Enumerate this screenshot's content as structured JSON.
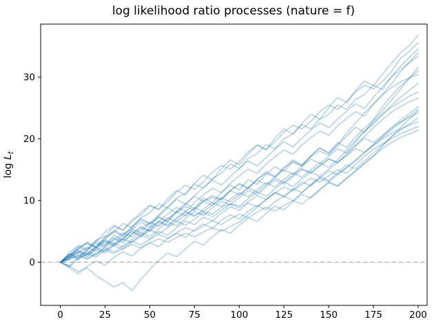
{
  "title": "log likelihood ratio processes (nature = f)",
  "chart_data": {
    "type": "line",
    "title": "log likelihood ratio processes (nature = f)",
    "xlabel": "",
    "ylabel": "log L_t",
    "ylabel_parts": {
      "prefix": "log",
      "variable": "L",
      "subscript": "t"
    },
    "xlim": [
      -11,
      205
    ],
    "ylim": [
      -7,
      38.6
    ],
    "x_ticks": [
      0,
      25,
      50,
      75,
      100,
      125,
      150,
      175,
      200
    ],
    "y_ticks": [
      0,
      10,
      20,
      30
    ],
    "grid": false,
    "legend": "none",
    "x_step": 5,
    "line_color": "#1f77b4",
    "line_alpha": 0.35,
    "line_width": 1.5,
    "zero_line": {
      "y": 0,
      "color": "#b0b0b0",
      "style": "dashed",
      "dash": [
        6.7,
        3.7
      ],
      "width": 1.3
    },
    "series": [
      {
        "name": "path-1",
        "values": [
          0,
          1.1,
          2.4,
          1.9,
          3.6,
          4.2,
          5.8,
          5.1,
          6.9,
          7.6,
          9.2,
          8.5,
          10.3,
          11.6,
          10.9,
          12.8,
          14.1,
          13.3,
          15.2,
          16.6,
          15.8,
          17.5,
          19.0,
          18.2,
          20.1,
          21.6,
          20.8,
          22.5,
          24.0,
          23.2,
          25.1,
          26.7,
          25.9,
          27.8,
          29.4,
          28.6,
          30.5,
          32.2,
          33.9,
          35.1,
          36.8
        ]
      },
      {
        "name": "path-2",
        "values": [
          0,
          1.6,
          2.7,
          2.1,
          3.3,
          4.9,
          6.0,
          5.3,
          6.5,
          8.1,
          9.2,
          8.6,
          9.8,
          11.4,
          12.5,
          11.8,
          13.0,
          14.6,
          15.7,
          15.1,
          16.3,
          17.9,
          19.0,
          18.3,
          19.5,
          21.1,
          22.2,
          21.6,
          22.8,
          24.4,
          25.5,
          24.8,
          26.0,
          27.6,
          28.7,
          28.1,
          29.3,
          30.9,
          33.0,
          34.2,
          35.6
        ]
      },
      {
        "name": "path-3",
        "values": [
          0,
          0.7,
          2.2,
          3.0,
          2.4,
          4.1,
          4.8,
          6.3,
          5.6,
          7.2,
          8.0,
          9.5,
          8.8,
          10.4,
          11.2,
          12.7,
          12.0,
          13.6,
          14.4,
          15.9,
          15.2,
          16.8,
          17.6,
          19.1,
          18.4,
          20.0,
          20.8,
          22.3,
          21.6,
          23.2,
          24.0,
          25.5,
          24.8,
          26.4,
          27.2,
          28.7,
          28.0,
          30.1,
          31.7,
          33.2,
          34.6
        ]
      },
      {
        "name": "path-4",
        "values": [
          0,
          -0.6,
          0.9,
          1.7,
          1.1,
          2.6,
          3.8,
          3.1,
          4.6,
          5.8,
          5.1,
          6.6,
          7.8,
          8.9,
          8.2,
          9.7,
          10.9,
          12.0,
          11.3,
          12.8,
          14.0,
          15.1,
          14.4,
          15.9,
          17.1,
          18.2,
          17.5,
          19.0,
          20.2,
          21.3,
          20.6,
          22.1,
          23.3,
          24.4,
          23.7,
          25.6,
          27.2,
          28.9,
          30.8,
          32.4,
          34.0
        ]
      },
      {
        "name": "path-5",
        "values": [
          0,
          1.0,
          2.1,
          3.3,
          2.5,
          3.9,
          5.2,
          4.4,
          5.8,
          7.1,
          6.3,
          7.7,
          9.0,
          10.2,
          9.4,
          10.8,
          12.1,
          13.3,
          12.5,
          13.9,
          15.2,
          16.4,
          15.6,
          17.0,
          18.3,
          19.5,
          18.7,
          20.1,
          21.4,
          22.6,
          21.8,
          23.2,
          24.5,
          25.7,
          24.9,
          26.8,
          28.4,
          30.0,
          31.2,
          32.3,
          33.4
        ]
      },
      {
        "name": "path-6",
        "values": [
          0,
          1.4,
          0.6,
          2.3,
          3.5,
          2.7,
          4.4,
          3.6,
          5.3,
          6.5,
          5.7,
          7.4,
          6.6,
          8.3,
          9.5,
          8.7,
          10.4,
          9.6,
          11.3,
          12.5,
          11.7,
          13.4,
          12.6,
          14.3,
          15.5,
          14.7,
          16.4,
          15.6,
          17.3,
          18.5,
          17.7,
          19.4,
          18.6,
          20.3,
          21.8,
          23.0,
          24.5,
          26.3,
          28.0,
          29.8,
          31.6
        ]
      },
      {
        "name": "path-7",
        "values": [
          0,
          0.9,
          1.8,
          1.2,
          2.7,
          3.6,
          3.0,
          4.5,
          5.4,
          4.8,
          6.3,
          7.2,
          6.6,
          8.1,
          9.0,
          8.4,
          9.9,
          10.8,
          10.2,
          11.7,
          12.6,
          12.0,
          13.5,
          14.4,
          13.8,
          15.3,
          16.2,
          15.6,
          17.1,
          18.0,
          17.4,
          18.9,
          20.4,
          21.9,
          21.0,
          23.1,
          25.2,
          27.0,
          28.5,
          29.8,
          31.0
        ]
      },
      {
        "name": "path-8",
        "values": [
          0,
          1.2,
          2.5,
          3.1,
          2.3,
          3.7,
          5.0,
          4.2,
          5.6,
          6.9,
          6.1,
          7.5,
          8.8,
          8.0,
          9.4,
          10.7,
          9.9,
          10.5,
          10.1,
          11.5,
          12.8,
          12.0,
          13.4,
          14.7,
          13.9,
          15.3,
          16.6,
          15.8,
          17.2,
          18.5,
          17.7,
          19.1,
          20.9,
          22.6,
          24.2,
          25.7,
          27.1,
          28.3,
          29.2,
          29.9,
          30.4
        ]
      },
      {
        "name": "path-9",
        "values": [
          0,
          -0.8,
          0.5,
          1.4,
          0.8,
          2.0,
          3.1,
          2.5,
          3.7,
          4.8,
          4.2,
          5.4,
          6.5,
          5.9,
          7.1,
          8.2,
          7.6,
          8.8,
          9.9,
          9.3,
          10.5,
          11.6,
          11.0,
          12.2,
          13.3,
          12.7,
          13.9,
          15.0,
          14.4,
          15.6,
          16.7,
          16.1,
          17.8,
          19.5,
          21.2,
          22.4,
          23.9,
          25.4,
          26.7,
          27.9,
          29.0
        ]
      },
      {
        "name": "path-10",
        "values": [
          0,
          0.8,
          1.7,
          1.0,
          2.2,
          3.3,
          2.6,
          3.8,
          4.9,
          4.2,
          5.4,
          6.5,
          5.8,
          7.0,
          8.1,
          7.4,
          8.6,
          9.7,
          9.0,
          10.2,
          11.3,
          10.6,
          11.8,
          12.9,
          12.2,
          13.4,
          14.5,
          13.8,
          15.0,
          16.1,
          15.4,
          16.6,
          18.2,
          19.8,
          21.3,
          22.7,
          24.0,
          25.1,
          26.0,
          26.9,
          27.6
        ]
      },
      {
        "name": "path-11",
        "values": [
          0,
          1.1,
          2.0,
          1.3,
          2.4,
          3.5,
          2.8,
          4.0,
          5.1,
          4.4,
          5.6,
          6.7,
          6.0,
          7.2,
          8.3,
          7.6,
          8.2,
          7.8,
          8.9,
          9.5,
          9.1,
          10.3,
          11.4,
          10.7,
          11.9,
          13.0,
          12.3,
          13.5,
          14.6,
          13.9,
          15.1,
          16.2,
          17.3,
          18.9,
          20.4,
          21.8,
          23.1,
          24.3,
          25.2,
          26.0,
          26.6
        ]
      },
      {
        "name": "path-12",
        "values": [
          0,
          0.6,
          1.5,
          0.9,
          2.1,
          1.5,
          2.7,
          2.1,
          3.3,
          4.4,
          3.8,
          5.0,
          4.4,
          5.6,
          6.7,
          6.1,
          7.3,
          6.7,
          7.9,
          9.0,
          8.4,
          9.6,
          9.0,
          10.2,
          11.3,
          10.7,
          11.9,
          11.3,
          12.5,
          13.6,
          13.0,
          14.2,
          15.3,
          16.4,
          17.8,
          19.1,
          20.4,
          21.7,
          23.0,
          24.1,
          25.2
        ]
      },
      {
        "name": "path-13",
        "values": [
          0,
          0.4,
          1.1,
          0.5,
          1.3,
          2.0,
          1.4,
          2.2,
          2.9,
          2.3,
          3.1,
          3.8,
          3.2,
          4.0,
          4.7,
          4.1,
          4.9,
          5.6,
          5.0,
          5.8,
          6.5,
          7.7,
          8.9,
          10.1,
          11.3,
          10.6,
          11.8,
          13.0,
          12.4,
          13.6,
          14.8,
          14.2,
          15.4,
          16.6,
          17.8,
          19.0,
          20.2,
          21.4,
          22.6,
          23.7,
          24.8
        ]
      },
      {
        "name": "path-14",
        "values": [
          0,
          1.3,
          0.7,
          1.9,
          3.1,
          2.4,
          3.6,
          4.8,
          4.1,
          5.3,
          6.5,
          5.8,
          7.0,
          8.2,
          7.5,
          8.7,
          9.9,
          9.2,
          10.4,
          11.6,
          10.9,
          12.1,
          13.3,
          12.6,
          13.8,
          15.0,
          14.3,
          15.5,
          16.7,
          16.0,
          17.2,
          18.4,
          17.7,
          18.9,
          20.1,
          19.4,
          20.6,
          21.8,
          22.7,
          23.5,
          24.2
        ]
      },
      {
        "name": "path-15",
        "values": [
          0,
          -0.9,
          -1.9,
          -0.7,
          0.2,
          -0.5,
          0.8,
          1.7,
          1.0,
          2.3,
          3.2,
          2.5,
          3.8,
          4.7,
          4.0,
          5.3,
          6.2,
          5.5,
          6.8,
          7.7,
          7.0,
          8.3,
          9.2,
          8.5,
          9.8,
          10.7,
          10.0,
          11.3,
          12.6,
          13.9,
          13.2,
          14.5,
          15.8,
          15.1,
          16.4,
          17.7,
          19.0,
          20.3,
          21.4,
          22.4,
          23.4
        ]
      },
      {
        "name": "path-16",
        "values": [
          0,
          0.7,
          1.6,
          2.4,
          1.8,
          2.9,
          4.0,
          3.4,
          4.5,
          5.6,
          5.0,
          6.1,
          7.2,
          6.6,
          7.7,
          8.8,
          8.2,
          9.3,
          10.4,
          9.8,
          10.9,
          12.0,
          11.4,
          12.5,
          13.6,
          13.0,
          14.1,
          15.2,
          14.6,
          15.7,
          16.8,
          16.2,
          17.3,
          18.4,
          17.8,
          18.9,
          20.0,
          20.9,
          21.6,
          22.2,
          22.8
        ]
      },
      {
        "name": "path-17",
        "values": [
          0,
          1.0,
          0.4,
          1.4,
          2.4,
          1.8,
          2.8,
          3.8,
          3.2,
          4.2,
          5.2,
          4.6,
          5.6,
          6.6,
          6.0,
          7.0,
          8.0,
          7.4,
          8.4,
          9.4,
          8.8,
          9.8,
          10.8,
          10.2,
          11.2,
          12.2,
          11.6,
          12.6,
          13.6,
          13.0,
          14.0,
          15.0,
          14.4,
          15.8,
          17.2,
          18.3,
          19.2,
          20.0,
          20.8,
          21.4,
          22.0
        ]
      },
      {
        "name": "path-18",
        "values": [
          0,
          0.5,
          1.2,
          0.6,
          1.5,
          2.3,
          1.7,
          2.6,
          3.4,
          2.8,
          3.7,
          4.5,
          3.9,
          4.8,
          5.6,
          5.0,
          5.9,
          6.7,
          6.1,
          7.0,
          7.8,
          7.2,
          8.1,
          8.9,
          8.3,
          9.2,
          10.0,
          9.4,
          10.6,
          11.8,
          13.0,
          12.4,
          13.6,
          14.8,
          16.0,
          17.2,
          18.4,
          19.4,
          20.2,
          20.8,
          21.4
        ]
      },
      {
        "name": "path-19",
        "values": [
          0,
          -0.6,
          -1.5,
          -0.9,
          -2.2,
          -3.1,
          -4.0,
          -3.3,
          -4.6,
          -2.8,
          -1.2,
          0.3,
          1.5,
          0.9,
          2.2,
          3.4,
          2.8,
          4.1,
          5.3,
          4.7,
          6.0,
          7.2,
          6.6,
          7.9,
          9.1,
          8.5,
          9.8,
          11.0,
          10.4,
          11.7,
          12.9,
          12.3,
          13.6,
          14.8,
          16.0,
          17.2,
          18.8,
          20.3,
          21.8,
          23.2,
          24.6
        ]
      }
    ]
  }
}
